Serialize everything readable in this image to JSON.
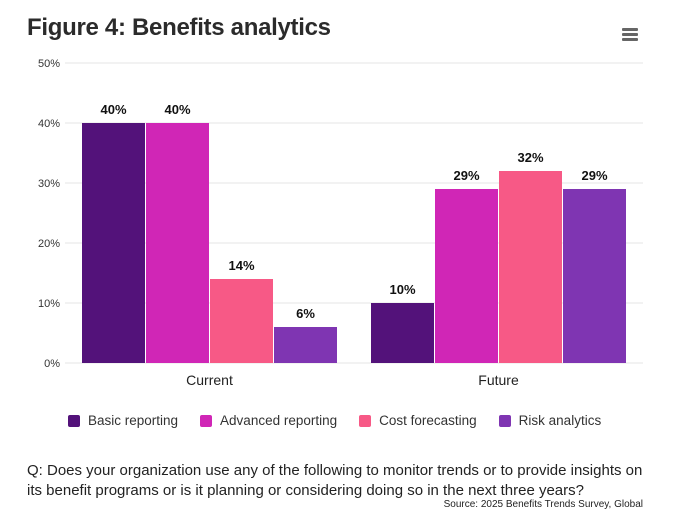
{
  "header": {
    "title": "Figure 4: Benefits analytics",
    "menu_icon": "hamburger-menu-icon"
  },
  "chart_data": {
    "type": "bar",
    "title": "Figure 4: Benefits analytics",
    "xlabel": "",
    "ylabel": "",
    "categories": [
      "Current",
      "Future"
    ],
    "series": [
      {
        "name": "Basic reporting",
        "color": "#53127A",
        "values": [
          40,
          10
        ],
        "labels": [
          "40%",
          "10%"
        ]
      },
      {
        "name": "Advanced reporting",
        "color": "#D026B6",
        "values": [
          40,
          29
        ],
        "labels": [
          "40%",
          "29%"
        ]
      },
      {
        "name": "Cost forecasting",
        "color": "#F75986",
        "values": [
          14,
          32
        ],
        "labels": [
          "14%",
          "32%"
        ]
      },
      {
        "name": "Risk analytics",
        "color": "#7F35B2",
        "values": [
          6,
          29
        ],
        "labels": [
          "6%",
          "29%"
        ]
      }
    ],
    "ylim": [
      0,
      50
    ],
    "yticks": [
      0,
      10,
      20,
      30,
      40,
      50
    ],
    "ytick_labels": [
      "0%",
      "10%",
      "20%",
      "30%",
      "40%",
      "50%"
    ],
    "grid": true,
    "legend_position": "bottom"
  },
  "footer": {
    "question": "Q: Does your organization use any of the following to monitor trends or to provide insights on its benefit programs or is it planning or considering doing so in the next three years?",
    "source": "Source: 2025 Benefits Trends Survey, Global"
  }
}
